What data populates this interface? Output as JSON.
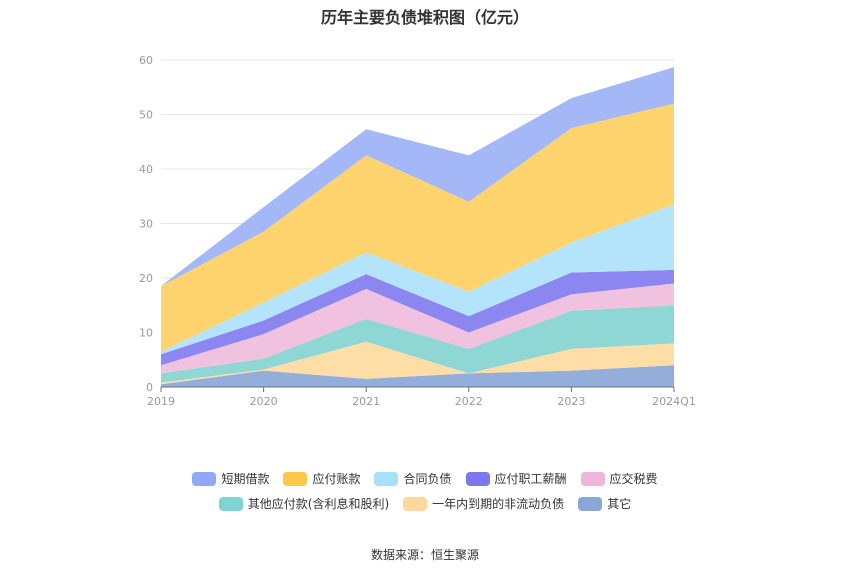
{
  "chart_data": {
    "type": "area",
    "stacked": true,
    "title": "历年主要负债堆积图（亿元）",
    "categories": [
      "2019",
      "2020",
      "2021",
      "2022",
      "2023",
      "2024Q1"
    ],
    "ylim": [
      0,
      60
    ],
    "yticks": [
      0,
      10,
      20,
      30,
      40,
      50,
      60
    ],
    "grid": true,
    "legend_position": "bottom",
    "series": [
      {
        "name": "其它",
        "color": "#93AEDB",
        "values": [
          0.5,
          3.0,
          1.5,
          2.5,
          3.0,
          4.0
        ]
      },
      {
        "name": "一年内到期的非流动负债",
        "color": "#FFDDA6",
        "values": [
          0.3,
          0.2,
          6.8,
          0.0,
          4.0,
          4.0
        ]
      },
      {
        "name": "其他应付款(含利息和股利)",
        "color": "#8ED7D5",
        "values": [
          1.7,
          2.0,
          4.2,
          4.5,
          7.0,
          7.0
        ]
      },
      {
        "name": "应交税费",
        "color": "#F0C2E0",
        "values": [
          1.5,
          4.5,
          5.5,
          3.0,
          3.0,
          4.0
        ]
      },
      {
        "name": "应付职工薪酬",
        "color": "#8C87F0",
        "values": [
          2.0,
          2.5,
          2.7,
          3.0,
          4.0,
          2.5
        ]
      },
      {
        "name": "合同负债",
        "color": "#B3E4FB",
        "values": [
          0.5,
          3.3,
          4.0,
          4.5,
          5.5,
          12.0
        ]
      },
      {
        "name": "应付账款",
        "color": "#FFD36E",
        "values": [
          12.0,
          13.0,
          17.8,
          16.5,
          21.0,
          18.5
        ]
      },
      {
        "name": "短期借款",
        "color": "#A4B8F8",
        "values": [
          0.0,
          4.5,
          4.8,
          8.5,
          5.5,
          6.7
        ]
      }
    ]
  },
  "legend_rows": [
    [
      {
        "label": "短期借款",
        "color": "#8FA9F7"
      },
      {
        "label": "应付账款",
        "color": "#FDC74A"
      },
      {
        "label": "合同负债",
        "color": "#A7E0FB"
      },
      {
        "label": "应付职工薪酬",
        "color": "#7B78EE"
      },
      {
        "label": "应交税费",
        "color": "#EDB6DA"
      }
    ],
    [
      {
        "label": "其他应付款(含利息和股利)",
        "color": "#7FD3D1"
      },
      {
        "label": "一年内到期的非流动负债",
        "color": "#FFD89E"
      },
      {
        "label": "其它",
        "color": "#89A6D8"
      }
    ]
  ],
  "source": "数据来源：恒生聚源"
}
